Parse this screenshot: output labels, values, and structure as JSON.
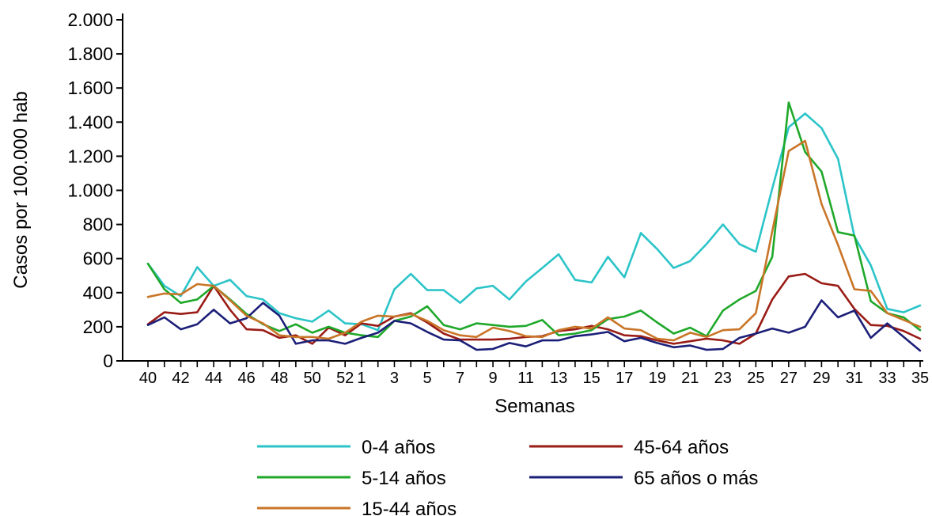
{
  "chart_data": {
    "type": "line",
    "xlabel": "Semanas",
    "ylabel": "Casos por 100.000 hab",
    "ylim": [
      0,
      2000
    ],
    "yticks": [
      0,
      200,
      400,
      600,
      800,
      1000,
      1200,
      1400,
      1600,
      1800,
      2000
    ],
    "ytick_labels": [
      "0",
      "200",
      "400",
      "600",
      "800",
      "1.000",
      "1.200",
      "1.400",
      "1.600",
      "1.800",
      "2.000"
    ],
    "x": [
      "40",
      "41",
      "42",
      "43",
      "44",
      "45",
      "46",
      "47",
      "48",
      "49",
      "50",
      "51",
      "52",
      "1",
      "2",
      "3",
      "4",
      "5",
      "6",
      "7",
      "8",
      "9",
      "10",
      "11",
      "12",
      "13",
      "14",
      "15",
      "16",
      "17",
      "18",
      "19",
      "20",
      "21",
      "22",
      "23",
      "24",
      "25",
      "26",
      "27",
      "28",
      "29",
      "30",
      "31",
      "32",
      "33",
      "34",
      "35"
    ],
    "xtick_labels": [
      "40",
      "42",
      "44",
      "46",
      "48",
      "50",
      "52",
      "1",
      "3",
      "5",
      "7",
      "9",
      "11",
      "13",
      "15",
      "17",
      "19",
      "21",
      "23",
      "25",
      "27",
      "29",
      "31",
      "33",
      "35"
    ],
    "grid": false,
    "legend_position": "bottom",
    "series": [
      {
        "name": "0-4 años",
        "color": "#2bc4c8",
        "values": [
          570,
          440,
          380,
          550,
          440,
          475,
          380,
          360,
          280,
          250,
          230,
          295,
          220,
          215,
          180,
          420,
          510,
          415,
          415,
          340,
          425,
          440,
          360,
          465,
          545,
          625,
          475,
          460,
          610,
          490,
          750,
          655,
          545,
          585,
          685,
          800,
          685,
          640,
          1010,
          1370,
          1450,
          1365,
          1185,
          730,
          560,
          305,
          285,
          325
        ]
      },
      {
        "name": "45-64 años",
        "color": "#9a1c16",
        "values": [
          215,
          285,
          275,
          285,
          440,
          300,
          185,
          180,
          135,
          150,
          100,
          195,
          150,
          220,
          205,
          260,
          280,
          225,
          160,
          125,
          125,
          125,
          130,
          140,
          145,
          175,
          185,
          205,
          185,
          150,
          145,
          120,
          100,
          115,
          130,
          120,
          100,
          160,
          360,
          495,
          510,
          455,
          440,
          305,
          210,
          205,
          175,
          130
        ]
      },
      {
        "name": "5-14 años",
        "color": "#1fa82a",
        "values": [
          570,
          420,
          340,
          360,
          440,
          360,
          275,
          215,
          175,
          215,
          165,
          200,
          165,
          150,
          140,
          235,
          260,
          320,
          210,
          185,
          220,
          210,
          200,
          205,
          240,
          150,
          160,
          180,
          245,
          260,
          295,
          225,
          160,
          195,
          145,
          295,
          360,
          410,
          610,
          1515,
          1225,
          1110,
          755,
          735,
          350,
          280,
          255,
          180
        ]
      },
      {
        "name": "65 años o más",
        "color": "#1c1f78",
        "values": [
          210,
          255,
          185,
          215,
          300,
          220,
          250,
          340,
          265,
          100,
          120,
          120,
          100,
          135,
          165,
          235,
          220,
          170,
          125,
          120,
          65,
          70,
          105,
          85,
          120,
          120,
          145,
          155,
          170,
          115,
          135,
          105,
          80,
          90,
          65,
          70,
          135,
          160,
          190,
          165,
          200,
          355,
          255,
          295,
          135,
          220,
          140,
          60
        ]
      },
      {
        "name": "15-44 años",
        "color": "#c97528",
        "values": [
          375,
          395,
          390,
          450,
          440,
          355,
          265,
          220,
          150,
          140,
          140,
          130,
          165,
          230,
          265,
          260,
          275,
          235,
          180,
          150,
          140,
          195,
          175,
          145,
          140,
          180,
          200,
          190,
          255,
          190,
          180,
          130,
          120,
          165,
          140,
          180,
          185,
          280,
          760,
          1230,
          1290,
          920,
          680,
          420,
          410,
          280,
          240,
          200
        ]
      }
    ]
  }
}
